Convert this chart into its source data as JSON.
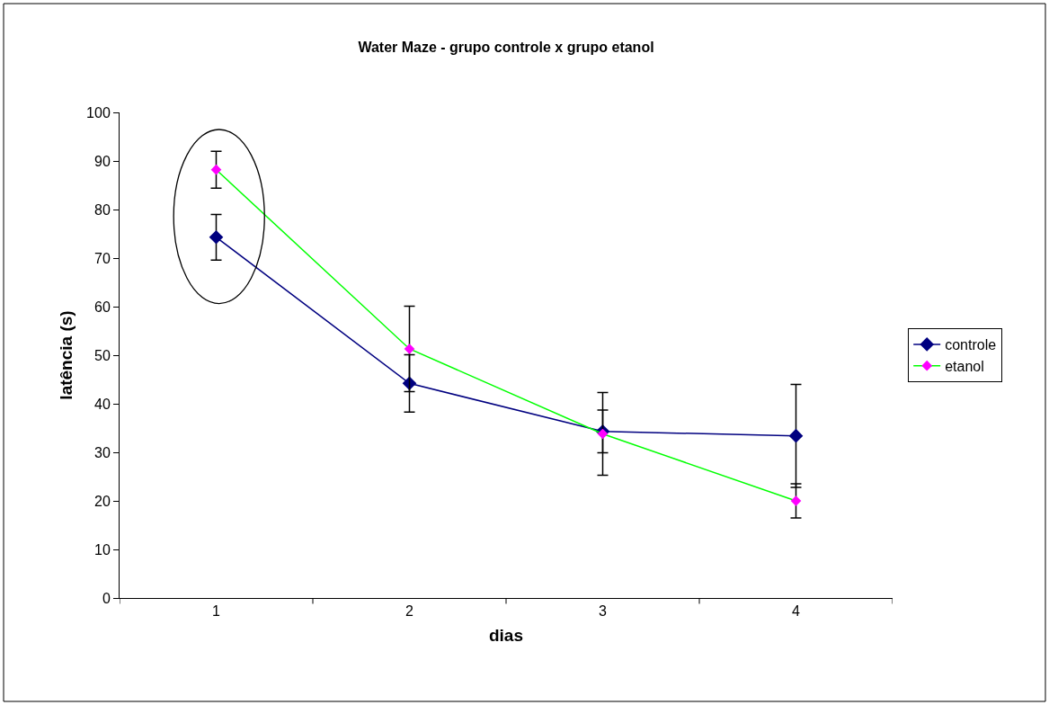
{
  "chart_data": {
    "type": "line",
    "title": "Water Maze - grupo controle x grupo etanol",
    "xlabel": "dias",
    "ylabel": "latência (s)",
    "categories": [
      "1",
      "2",
      "3",
      "4"
    ],
    "series": [
      {
        "name": "controle",
        "color": "#000080",
        "values": [
          74.3,
          44.2,
          34.3,
          33.4
        ],
        "errors": [
          4.7,
          5.9,
          4.4,
          10.6
        ]
      },
      {
        "name": "etanol",
        "color": "#00ff00",
        "colors": [
          "#ff00ff",
          "#ff00ff",
          "#ff00ff",
          "#ff00ff"
        ],
        "values": [
          88.2,
          51.3,
          33.8,
          20.0
        ],
        "errors": [
          3.8,
          8.8,
          8.5,
          3.5
        ]
      }
    ],
    "ylim": [
      0,
      100
    ],
    "yticks": [
      0,
      10,
      20,
      30,
      40,
      50,
      60,
      70,
      80,
      90,
      100
    ],
    "marker": "diamond",
    "line_style": "solid",
    "legend": "right"
  }
}
